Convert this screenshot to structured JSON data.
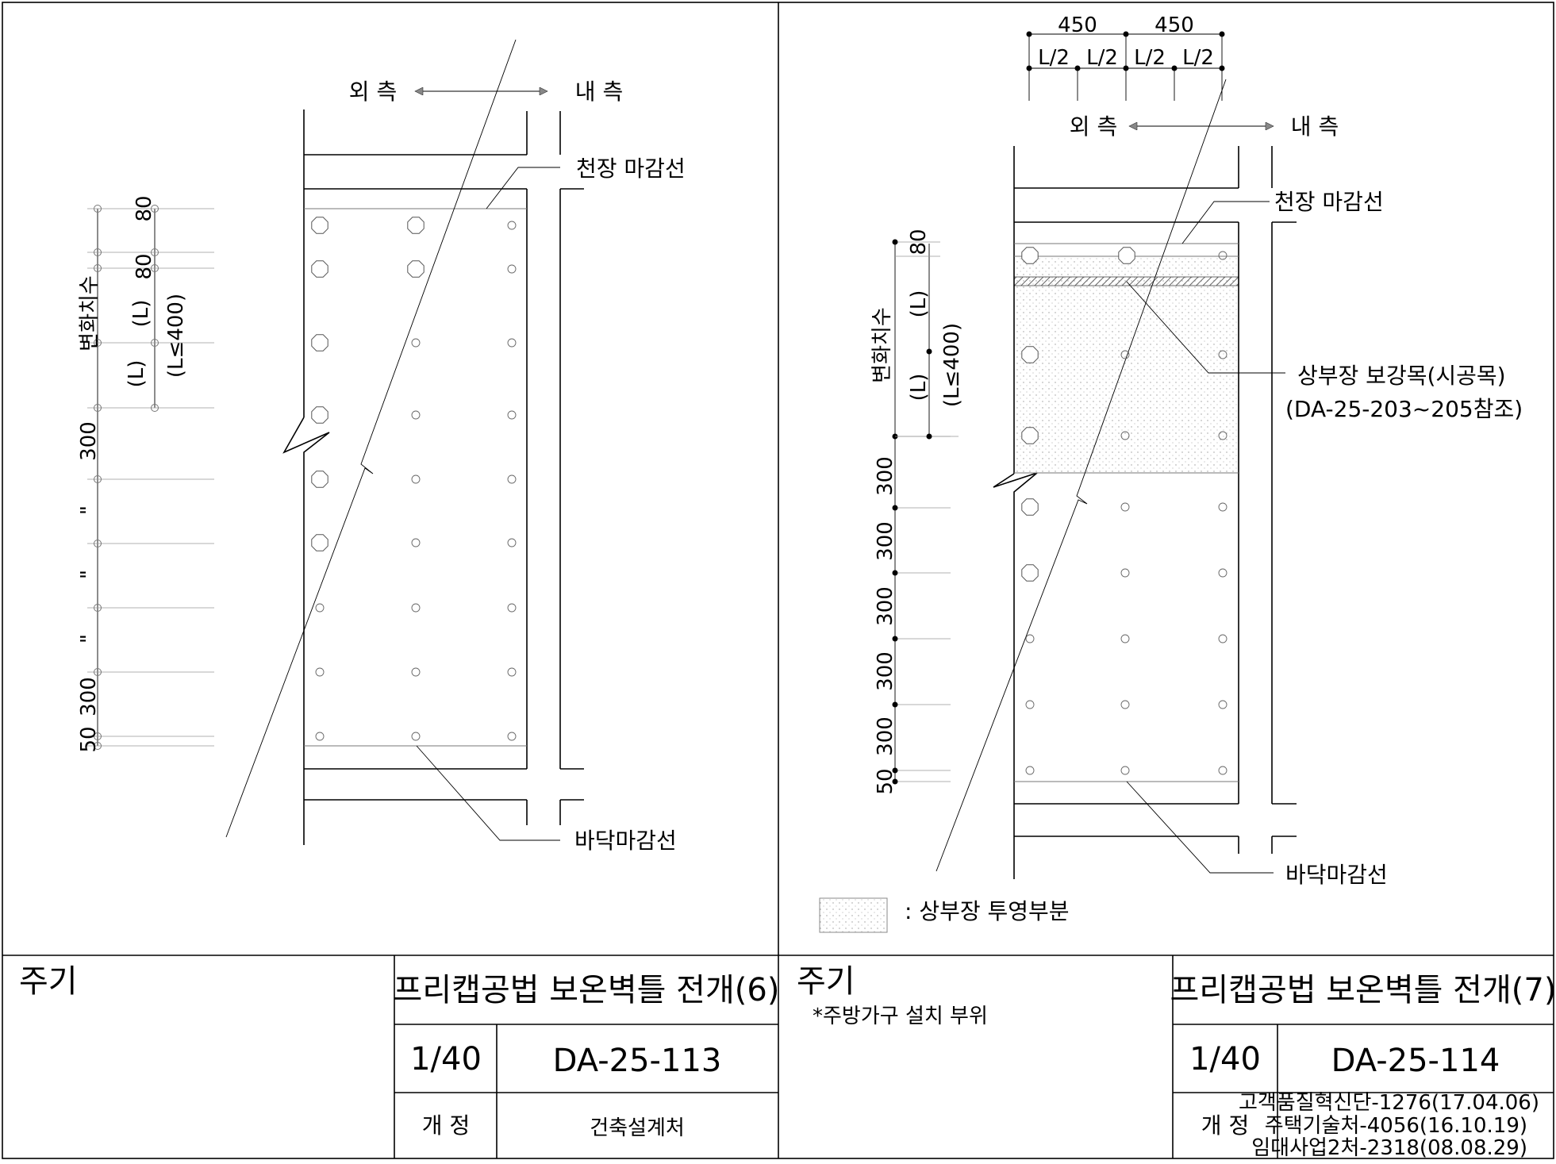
{
  "panels": [
    {
      "outer_label": "외 측",
      "inner_label": "내 측",
      "ceiling_label": "천장 마감선",
      "floor_label": "바닥마감선",
      "var_dim_label": "변화치수",
      "dims": {
        "d80a": "80",
        "d80b": "80",
        "L1": "(L)",
        "L2": "(L)",
        "Lmax": "(L≤400)",
        "d300a": "300",
        "q1": "\"",
        "q2": "\"",
        "q3": "\"",
        "d300b": "300",
        "d50": "50"
      },
      "notes_title": "주기",
      "note": "",
      "title": "프리캡공법 보온벽틀 전개(6)",
      "scale": "1/40",
      "dwg_no": "DA-25-113",
      "rev_label": "개 정",
      "rev_text": [
        "건축설계처"
      ]
    },
    {
      "outer_label": "외 측",
      "inner_label": "내 측",
      "ceiling_label": "천장 마감선",
      "floor_label": "바닥마감선",
      "var_dim_label": "변화치수",
      "top_dims": [
        "450",
        "450"
      ],
      "half_labels": [
        "L/2",
        "L/2",
        "L/2",
        "L/2"
      ],
      "dims": {
        "d80": "80",
        "L1": "(L)",
        "L2": "(L)",
        "Lmax": "(L≤400)",
        "d300": [
          "300",
          "300",
          "300",
          "300",
          "300"
        ],
        "d50": "50"
      },
      "reinforce_label": "상부장 보강목(시공목)",
      "reinforce_ref": "(DA-25-203~205참조)",
      "legend_label": ": 상부장 투영부분",
      "notes_title": "주기",
      "note": "*주방가구 설치 부위",
      "title": "프리캡공법 보온벽틀 전개(7)",
      "scale": "1/40",
      "dwg_no": "DA-25-114",
      "rev_label": "개 정",
      "rev_text": [
        "고객품질혁신단-1276(17.04.06)",
        "주택기술처-4056(16.10.19)",
        "임대사업2처-2318(08.08.29)"
      ]
    }
  ]
}
